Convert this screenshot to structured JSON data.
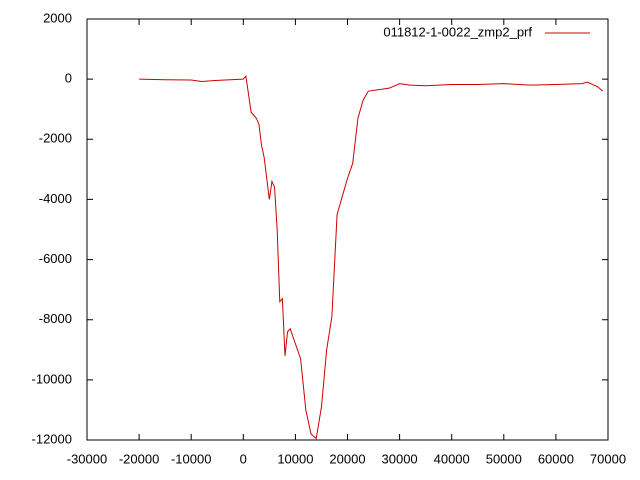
{
  "chart_data": {
    "type": "line",
    "xlim": [
      -30000,
      70000
    ],
    "xticks": [
      -30000,
      -20000,
      -10000,
      0,
      10000,
      20000,
      30000,
      40000,
      50000,
      60000,
      70000
    ],
    "ylim": [
      -12000,
      2000
    ],
    "yticks": [
      2000,
      0,
      -2000,
      -4000,
      -6000,
      -8000,
      -10000,
      -12000
    ],
    "legend": "top-right",
    "x": [
      -20000,
      -15000,
      -10000,
      -8000,
      -5000,
      0,
      500,
      1000,
      1500,
      2500,
      3000,
      3500,
      4000,
      4500,
      5000,
      5500,
      6000,
      6500,
      7000,
      7500,
      8000,
      8500,
      9000,
      10000,
      11000,
      12000,
      13000,
      14000,
      15000,
      16000,
      17000,
      18000,
      19000,
      20000,
      21000,
      22000,
      23000,
      24000,
      26000,
      28000,
      30000,
      32000,
      35000,
      40000,
      45000,
      50000,
      55000,
      60000,
      65000,
      66000,
      68000,
      69000
    ],
    "series": [
      {
        "name": "011812-1-0022_zmp2_prf",
        "color": "#cc0000",
        "values": [
          0,
          -20,
          -30,
          -80,
          -40,
          0,
          100,
          -500,
          -1100,
          -1300,
          -1500,
          -2200,
          -2600,
          -3300,
          -4000,
          -3400,
          -3600,
          -5000,
          -7400,
          -7300,
          -9200,
          -8400,
          -8300,
          -8800,
          -9300,
          -11000,
          -11800,
          -11950,
          -10900,
          -9000,
          -7900,
          -4500,
          -3900,
          -3300,
          -2800,
          -1300,
          -700,
          -400,
          -350,
          -300,
          -150,
          -200,
          -220,
          -180,
          -180,
          -150,
          -200,
          -180,
          -150,
          -100,
          -250,
          -400
        ]
      }
    ]
  }
}
